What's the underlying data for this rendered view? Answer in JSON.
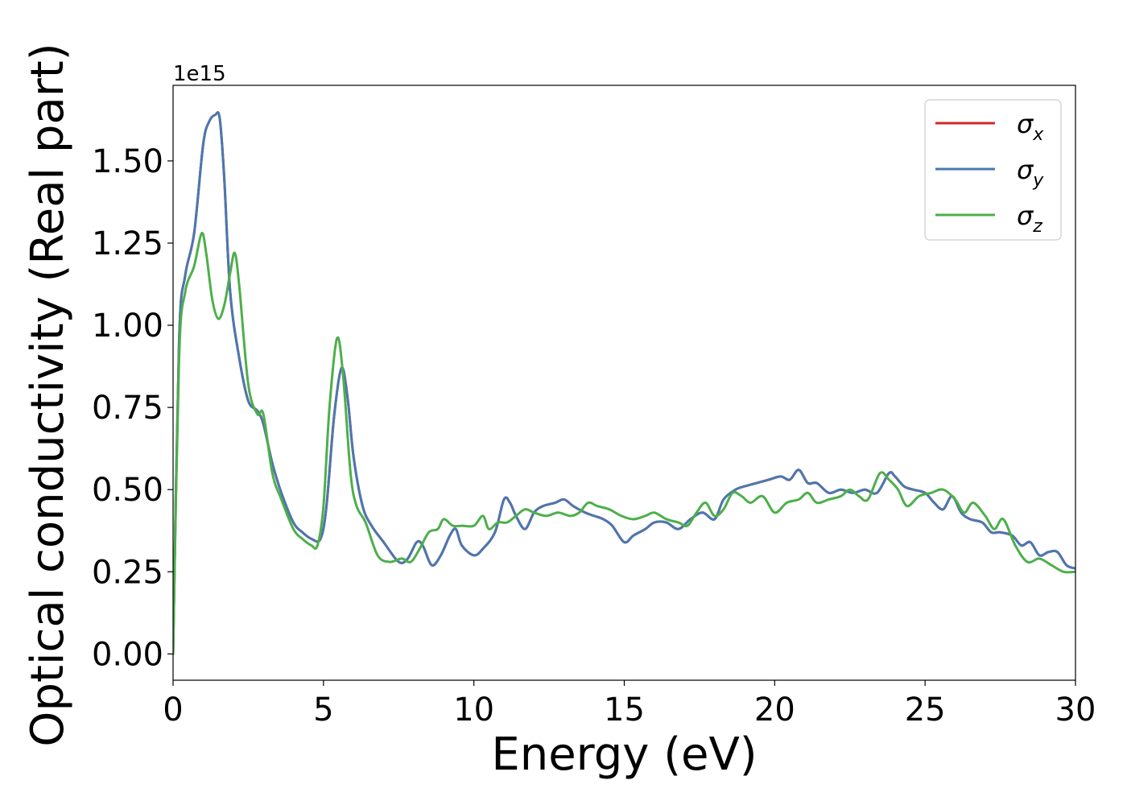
{
  "chart_data": {
    "type": "line",
    "xlabel": "Energy (eV)",
    "ylabel": "Optical conductivity (Real part)",
    "offset_text": "1e15",
    "xlim": [
      0,
      30
    ],
    "ylim": [
      -0.08,
      1.73
    ],
    "x_ticks": [
      0,
      5,
      10,
      15,
      20,
      25,
      30
    ],
    "x_tick_labels": [
      "0",
      "5",
      "10",
      "15",
      "20",
      "25",
      "30"
    ],
    "y_ticks": [
      0.0,
      0.25,
      0.5,
      0.75,
      1.0,
      1.25,
      1.5
    ],
    "y_tick_labels": [
      "0.00",
      "0.25",
      "0.50",
      "0.75",
      "1.00",
      "1.25",
      "1.50"
    ],
    "grid": false,
    "legend_position": "top-right",
    "series": [
      {
        "name": "σ_x",
        "symbol": "σ",
        "subscript": "x",
        "color": "#d62728",
        "x": [
          0,
          0.2,
          0.4,
          0.7,
          1.0,
          1.2,
          1.4,
          1.55,
          1.7,
          1.9,
          2.2,
          2.5,
          2.8,
          3.0,
          3.3,
          3.6,
          4.0,
          4.3,
          4.6,
          4.9,
          5.1,
          5.35,
          5.6,
          5.8,
          6.0,
          6.3,
          6.6,
          7.0,
          7.5,
          7.8,
          8.1,
          8.3,
          8.6,
          8.9,
          9.2,
          9.4,
          9.6,
          10.0,
          10.3,
          10.7,
          11.0,
          11.2,
          11.4,
          11.7,
          12.0,
          12.3,
          12.7,
          13.0,
          13.3,
          13.7,
          14.0,
          14.3,
          14.6,
          15.0,
          15.3,
          15.7,
          16.0,
          16.4,
          16.8,
          17.2,
          17.6,
          18.0,
          18.3,
          18.7,
          19.0,
          19.4,
          19.8,
          20.2,
          20.5,
          20.8,
          21.1,
          21.4,
          21.8,
          22.2,
          22.6,
          23.0,
          23.4,
          23.8,
          24.0,
          24.3,
          24.6,
          25.0,
          25.3,
          25.6,
          25.9,
          26.2,
          26.5,
          26.9,
          27.2,
          27.5,
          27.9,
          28.2,
          28.5,
          28.8,
          29.1,
          29.4,
          29.7,
          30.0
        ],
        "values": [
          0.0,
          0.95,
          1.15,
          1.28,
          1.55,
          1.62,
          1.64,
          1.63,
          1.45,
          1.1,
          0.9,
          0.77,
          0.74,
          0.7,
          0.58,
          0.49,
          0.4,
          0.37,
          0.35,
          0.35,
          0.45,
          0.72,
          0.87,
          0.78,
          0.6,
          0.45,
          0.39,
          0.34,
          0.28,
          0.29,
          0.34,
          0.33,
          0.27,
          0.3,
          0.36,
          0.38,
          0.33,
          0.3,
          0.32,
          0.37,
          0.47,
          0.46,
          0.42,
          0.38,
          0.43,
          0.45,
          0.46,
          0.47,
          0.45,
          0.43,
          0.42,
          0.41,
          0.39,
          0.34,
          0.36,
          0.38,
          0.4,
          0.4,
          0.38,
          0.41,
          0.43,
          0.41,
          0.47,
          0.5,
          0.51,
          0.52,
          0.53,
          0.54,
          0.53,
          0.56,
          0.52,
          0.52,
          0.49,
          0.5,
          0.49,
          0.5,
          0.49,
          0.55,
          0.54,
          0.51,
          0.5,
          0.49,
          0.46,
          0.44,
          0.48,
          0.43,
          0.41,
          0.4,
          0.37,
          0.37,
          0.36,
          0.33,
          0.34,
          0.3,
          0.31,
          0.31,
          0.27,
          0.26
        ]
      },
      {
        "name": "σ_y",
        "symbol": "σ",
        "subscript": "y",
        "color": "#4a78b0",
        "x": [
          0,
          0.2,
          0.4,
          0.7,
          1.0,
          1.2,
          1.4,
          1.55,
          1.7,
          1.9,
          2.2,
          2.5,
          2.8,
          3.0,
          3.3,
          3.6,
          4.0,
          4.3,
          4.6,
          4.9,
          5.1,
          5.35,
          5.6,
          5.8,
          6.0,
          6.3,
          6.6,
          7.0,
          7.5,
          7.8,
          8.1,
          8.3,
          8.6,
          8.9,
          9.2,
          9.4,
          9.6,
          10.0,
          10.3,
          10.7,
          11.0,
          11.2,
          11.4,
          11.7,
          12.0,
          12.3,
          12.7,
          13.0,
          13.3,
          13.7,
          14.0,
          14.3,
          14.6,
          15.0,
          15.3,
          15.7,
          16.0,
          16.4,
          16.8,
          17.2,
          17.6,
          18.0,
          18.3,
          18.7,
          19.0,
          19.4,
          19.8,
          20.2,
          20.5,
          20.8,
          21.1,
          21.4,
          21.8,
          22.2,
          22.6,
          23.0,
          23.4,
          23.8,
          24.0,
          24.3,
          24.6,
          25.0,
          25.3,
          25.6,
          25.9,
          26.2,
          26.5,
          26.9,
          27.2,
          27.5,
          27.9,
          28.2,
          28.5,
          28.8,
          29.1,
          29.4,
          29.7,
          30.0
        ],
        "values": [
          0.0,
          0.95,
          1.15,
          1.28,
          1.55,
          1.62,
          1.64,
          1.63,
          1.45,
          1.1,
          0.9,
          0.77,
          0.74,
          0.7,
          0.58,
          0.49,
          0.4,
          0.37,
          0.35,
          0.35,
          0.45,
          0.72,
          0.87,
          0.78,
          0.6,
          0.45,
          0.39,
          0.34,
          0.28,
          0.29,
          0.34,
          0.33,
          0.27,
          0.3,
          0.36,
          0.38,
          0.33,
          0.3,
          0.32,
          0.37,
          0.47,
          0.46,
          0.42,
          0.38,
          0.43,
          0.45,
          0.46,
          0.47,
          0.45,
          0.43,
          0.42,
          0.41,
          0.39,
          0.34,
          0.36,
          0.38,
          0.4,
          0.4,
          0.38,
          0.41,
          0.43,
          0.41,
          0.47,
          0.5,
          0.51,
          0.52,
          0.53,
          0.54,
          0.53,
          0.56,
          0.52,
          0.52,
          0.49,
          0.5,
          0.49,
          0.5,
          0.49,
          0.55,
          0.54,
          0.51,
          0.5,
          0.49,
          0.46,
          0.44,
          0.48,
          0.43,
          0.41,
          0.4,
          0.37,
          0.37,
          0.36,
          0.33,
          0.34,
          0.3,
          0.31,
          0.31,
          0.27,
          0.26
        ]
      },
      {
        "name": "σ_z",
        "symbol": "σ",
        "subscript": "z",
        "color": "#4daf4a",
        "x": [
          0,
          0.2,
          0.4,
          0.7,
          0.95,
          1.1,
          1.3,
          1.5,
          1.7,
          1.9,
          2.05,
          2.2,
          2.5,
          2.8,
          3.0,
          3.3,
          3.6,
          4.0,
          4.3,
          4.6,
          4.8,
          5.0,
          5.2,
          5.45,
          5.65,
          5.9,
          6.1,
          6.4,
          6.8,
          7.2,
          7.6,
          7.9,
          8.2,
          8.5,
          8.8,
          9.0,
          9.3,
          9.6,
          10.0,
          10.3,
          10.5,
          10.8,
          11.1,
          11.4,
          11.7,
          12.0,
          12.4,
          12.8,
          13.2,
          13.5,
          13.8,
          14.1,
          14.5,
          14.9,
          15.3,
          15.7,
          16.0,
          16.4,
          16.8,
          17.1,
          17.4,
          17.7,
          18.0,
          18.3,
          18.6,
          18.9,
          19.2,
          19.6,
          20.0,
          20.4,
          20.8,
          21.1,
          21.4,
          21.8,
          22.2,
          22.5,
          22.8,
          23.1,
          23.5,
          23.8,
          24.1,
          24.4,
          24.8,
          25.2,
          25.6,
          26.0,
          26.3,
          26.6,
          27.0,
          27.3,
          27.6,
          28.0,
          28.4,
          28.8,
          29.2,
          29.6,
          30.0
        ],
        "values": [
          0.0,
          0.9,
          1.1,
          1.18,
          1.28,
          1.22,
          1.08,
          1.02,
          1.06,
          1.16,
          1.22,
          1.12,
          0.82,
          0.73,
          0.73,
          0.55,
          0.47,
          0.38,
          0.35,
          0.33,
          0.33,
          0.45,
          0.75,
          0.96,
          0.85,
          0.55,
          0.45,
          0.4,
          0.3,
          0.28,
          0.29,
          0.28,
          0.32,
          0.37,
          0.38,
          0.41,
          0.39,
          0.39,
          0.39,
          0.42,
          0.38,
          0.4,
          0.4,
          0.42,
          0.44,
          0.43,
          0.42,
          0.43,
          0.42,
          0.43,
          0.46,
          0.45,
          0.44,
          0.42,
          0.41,
          0.42,
          0.43,
          0.41,
          0.4,
          0.39,
          0.43,
          0.46,
          0.42,
          0.44,
          0.49,
          0.48,
          0.46,
          0.48,
          0.43,
          0.46,
          0.47,
          0.49,
          0.46,
          0.47,
          0.48,
          0.5,
          0.48,
          0.47,
          0.55,
          0.53,
          0.5,
          0.45,
          0.48,
          0.49,
          0.5,
          0.47,
          0.43,
          0.46,
          0.42,
          0.38,
          0.41,
          0.33,
          0.28,
          0.29,
          0.27,
          0.25,
          0.25
        ]
      }
    ]
  }
}
